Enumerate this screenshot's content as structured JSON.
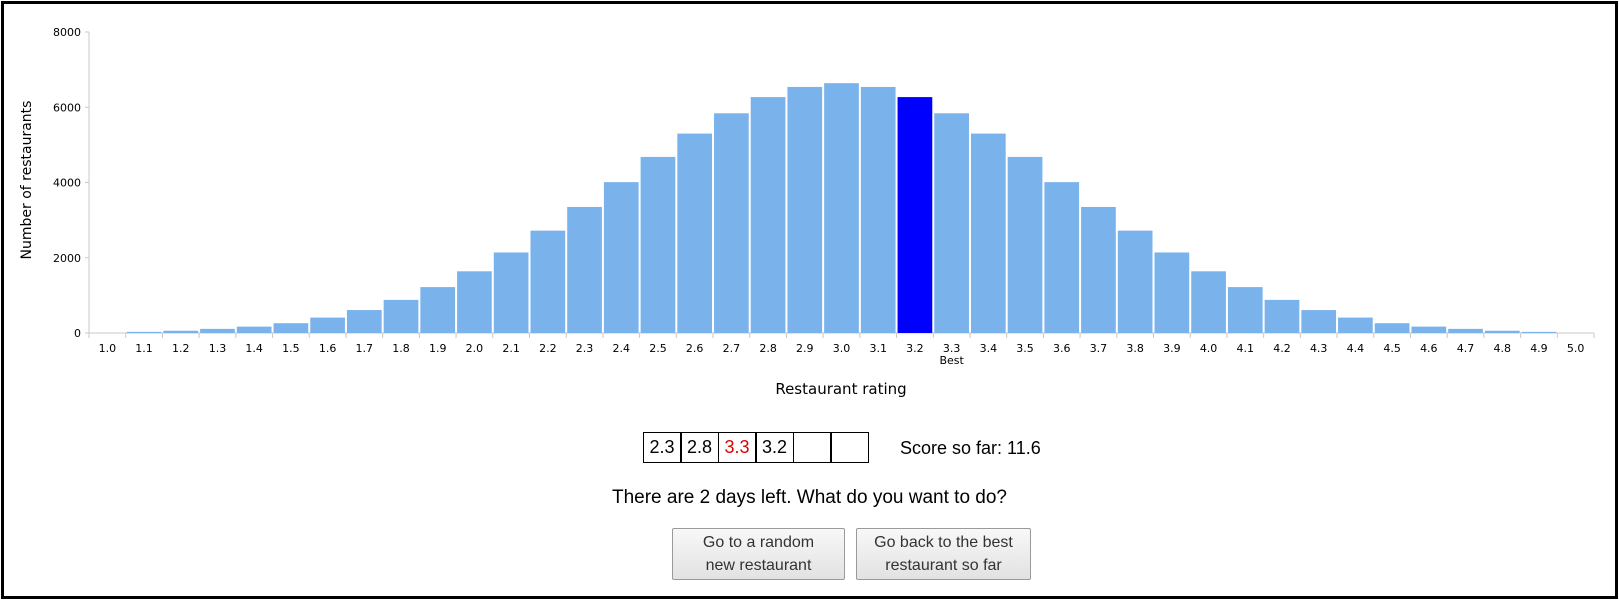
{
  "chart_data": {
    "type": "bar",
    "xlabel": "Restaurant rating",
    "ylabel": "Number of restaurants",
    "ylim": [
      0,
      8000
    ],
    "yticks": [
      "0",
      "2000",
      "4000",
      "6000",
      "8000"
    ],
    "categories": [
      "1.0",
      "1.1",
      "1.2",
      "1.3",
      "1.4",
      "1.5",
      "1.6",
      "1.7",
      "1.8",
      "1.9",
      "2.0",
      "2.1",
      "2.2",
      "2.3",
      "2.4",
      "2.5",
      "2.6",
      "2.7",
      "2.8",
      "2.9",
      "3.0",
      "3.1",
      "3.2",
      "3.3",
      "3.4",
      "3.5",
      "3.6",
      "3.7",
      "3.8",
      "3.9",
      "4.0",
      "4.1",
      "4.2",
      "4.3",
      "4.4",
      "4.5",
      "4.6",
      "4.7",
      "4.8",
      "4.9",
      "5.0"
    ],
    "values": [
      0,
      30,
      60,
      110,
      170,
      260,
      410,
      610,
      880,
      1220,
      1640,
      2140,
      2720,
      3350,
      4010,
      4680,
      5300,
      5840,
      6270,
      6540,
      6640,
      6540,
      6270,
      5840,
      5300,
      4680,
      4010,
      3350,
      2720,
      2140,
      1640,
      1220,
      880,
      610,
      410,
      260,
      170,
      110,
      60,
      30,
      0
    ],
    "highlight_index": 22,
    "best_index": 23,
    "best_annotation": "Best",
    "colors": {
      "bar": "#7ab3ec",
      "current": "#0000ff",
      "best_label": "#e00000"
    }
  },
  "history": {
    "cells": [
      {
        "value": "2.3",
        "best": false
      },
      {
        "value": "2.8",
        "best": false
      },
      {
        "value": "3.3",
        "best": true
      },
      {
        "value": "3.2",
        "best": false
      },
      {
        "value": "",
        "best": false
      },
      {
        "value": "",
        "best": false
      }
    ]
  },
  "score": {
    "text": "Score so far: 11.6"
  },
  "prompt": {
    "text": "There are 2 days left. What do you want to do?"
  },
  "buttons": {
    "random_line1": "Go to a random",
    "random_line2": "new restaurant",
    "best_line1": "Go back to the best",
    "best_line2": "restaurant so far"
  }
}
